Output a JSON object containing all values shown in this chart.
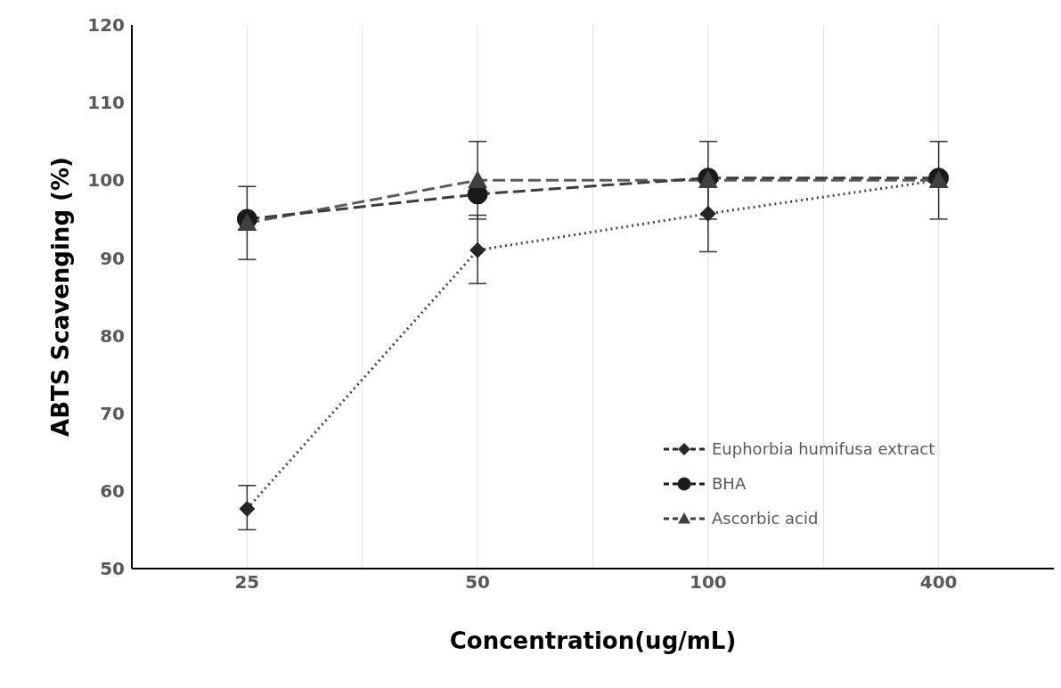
{
  "chart_data": {
    "type": "line",
    "xlabel": "Concentration(ug/mL)",
    "ylabel": "ABTS Scavenging (%)",
    "categories": [
      "25",
      "50",
      "100",
      "400"
    ],
    "series": [
      {
        "name": "Euphorbia humifusa extract",
        "color": "#262626",
        "values": [
          57.7,
          91,
          95.7,
          100
        ],
        "errors": [
          [
            55,
            60.7
          ],
          [
            86.7,
            95.5
          ],
          [
            90.8,
            100.5
          ],
          null
        ],
        "marker": "diamond",
        "line_style": "dotted"
      },
      {
        "name": "BHA",
        "color": "#1a1a1a",
        "values": [
          95,
          98.2,
          100.3,
          100.3
        ],
        "marker": "circle",
        "line_style": "dashed"
      },
      {
        "name": "Ascorbic acid",
        "color": "#404040",
        "values": [
          94.5,
          100,
          100,
          100
        ],
        "errors": [
          4.7,
          5,
          5,
          5
        ],
        "marker": "triangle",
        "line_style": "dashed"
      }
    ],
    "ylim": [
      50,
      120
    ],
    "yticks": [
      50,
      60,
      70,
      80,
      90,
      100,
      110,
      120
    ],
    "grid": "x",
    "legend": "bottom right"
  }
}
